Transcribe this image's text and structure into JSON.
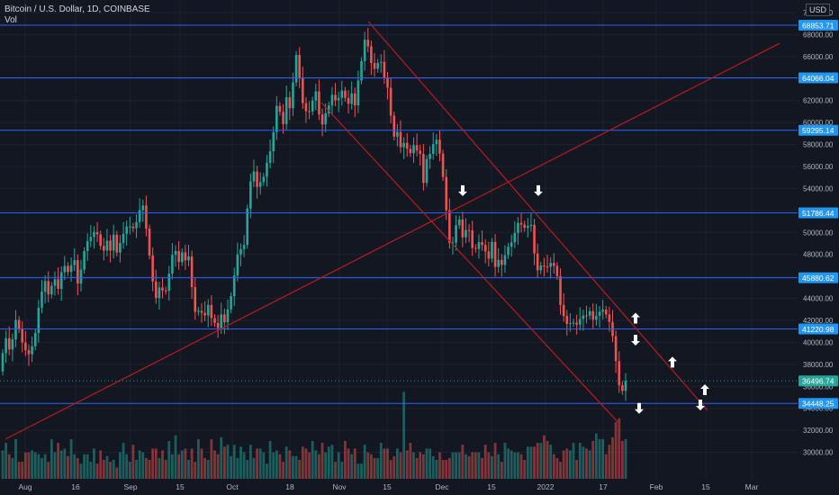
{
  "header": {
    "symbol": "Bitcoin / U.S. Dollar, 1D, COINBASE",
    "indicator": "Vol",
    "currency": "USD"
  },
  "colors": {
    "background": "#131722",
    "grid": "#1e222d",
    "up": "#26a69a",
    "down": "#ef5350",
    "level_line": "#2962ff",
    "level_label": "#2196f3",
    "trendline": "#b71c1c",
    "last_price": "#26a69a",
    "axis_text": "#b2b5be"
  },
  "chart_data": {
    "type": "candlestick",
    "title": "Bitcoin / U.S. Dollar, 1D, COINBASE",
    "ylim": [
      28500,
      70800
    ],
    "x_ticks": [
      "Aug",
      "16",
      "Sep",
      "15",
      "Oct",
      "18",
      "Nov",
      "15",
      "Dec",
      "15",
      "2022",
      "17",
      "Feb",
      "15",
      "Mar"
    ],
    "y_ticks": [
      30000,
      32000,
      34000,
      36000,
      38000,
      40000,
      42000,
      44000,
      46000,
      48000,
      50000,
      52000,
      54000,
      56000,
      58000,
      60000,
      62000,
      64000,
      66000,
      68000,
      70000
    ],
    "horizontal_levels": [
      68853.71,
      64066.04,
      59295.14,
      51786.44,
      45880.62,
      41220.98,
      34448.25
    ],
    "last_price": 36496.74,
    "path": [
      [
        0,
        36800
      ],
      [
        8,
        40500
      ],
      [
        14,
        38800
      ],
      [
        18,
        42300
      ],
      [
        22,
        41500
      ],
      [
        28,
        39500
      ],
      [
        34,
        38900
      ],
      [
        40,
        40200
      ],
      [
        46,
        44000
      ],
      [
        52,
        45600
      ],
      [
        56,
        44200
      ],
      [
        62,
        46000
      ],
      [
        66,
        44700
      ],
      [
        72,
        47200
      ],
      [
        78,
        46300
      ],
      [
        84,
        47800
      ],
      [
        88,
        45300
      ],
      [
        92,
        46700
      ],
      [
        96,
        48600
      ],
      [
        100,
        49400
      ],
      [
        104,
        49700
      ],
      [
        108,
        50300
      ],
      [
        112,
        49300
      ],
      [
        116,
        47900
      ],
      [
        120,
        49500
      ],
      [
        124,
        48200
      ],
      [
        128,
        49800
      ],
      [
        132,
        48000
      ],
      [
        136,
        49300
      ],
      [
        140,
        50100
      ],
      [
        144,
        50800
      ],
      [
        148,
        50300
      ],
      [
        152,
        50500
      ],
      [
        156,
        51800
      ],
      [
        160,
        52800
      ],
      [
        164,
        50500
      ],
      [
        168,
        47800
      ],
      [
        172,
        45200
      ],
      [
        176,
        43700
      ],
      [
        180,
        45600
      ],
      [
        184,
        44100
      ],
      [
        188,
        45300
      ],
      [
        192,
        47700
      ],
      [
        196,
        48600
      ],
      [
        200,
        47200
      ],
      [
        204,
        48200
      ],
      [
        208,
        47400
      ],
      [
        212,
        47900
      ],
      [
        216,
        44000
      ],
      [
        220,
        42100
      ],
      [
        224,
        43500
      ],
      [
        228,
        41700
      ],
      [
        232,
        43800
      ],
      [
        236,
        42300
      ],
      [
        240,
        41800
      ],
      [
        244,
        41300
      ],
      [
        248,
        42700
      ],
      [
        252,
        41600
      ],
      [
        256,
        43600
      ],
      [
        260,
        44600
      ],
      [
        264,
        47500
      ],
      [
        268,
        48700
      ],
      [
        272,
        48000
      ],
      [
        276,
        51800
      ],
      [
        280,
        54600
      ],
      [
        284,
        55600
      ],
      [
        288,
        53900
      ],
      [
        292,
        54800
      ],
      [
        296,
        55200
      ],
      [
        300,
        57200
      ],
      [
        304,
        57600
      ],
      [
        308,
        61600
      ],
      [
        312,
        61300
      ],
      [
        316,
        59600
      ],
      [
        320,
        62300
      ],
      [
        324,
        61200
      ],
      [
        328,
        64200
      ],
      [
        332,
        66900
      ],
      [
        336,
        62300
      ],
      [
        340,
        61300
      ],
      [
        344,
        60700
      ],
      [
        348,
        61600
      ],
      [
        352,
        63200
      ],
      [
        356,
        60800
      ],
      [
        360,
        59800
      ],
      [
        364,
        61000
      ],
      [
        368,
        61700
      ],
      [
        372,
        62900
      ],
      [
        376,
        61400
      ],
      [
        380,
        63100
      ],
      [
        384,
        62600
      ],
      [
        388,
        61400
      ],
      [
        392,
        62800
      ],
      [
        396,
        61500
      ],
      [
        400,
        64000
      ],
      [
        404,
        65900
      ],
      [
        408,
        68100
      ],
      [
        412,
        66300
      ],
      [
        416,
        64700
      ],
      [
        420,
        65100
      ],
      [
        424,
        66000
      ],
      [
        428,
        64200
      ],
      [
        432,
        63400
      ],
      [
        436,
        60600
      ],
      [
        440,
        58500
      ],
      [
        444,
        59300
      ],
      [
        448,
        57100
      ],
      [
        452,
        58800
      ],
      [
        456,
        56500
      ],
      [
        460,
        58200
      ],
      [
        464,
        57400
      ],
      [
        468,
        57600
      ],
      [
        472,
        54400
      ],
      [
        476,
        56800
      ],
      [
        480,
        57200
      ],
      [
        484,
        58300
      ],
      [
        488,
        58500
      ],
      [
        492,
        56200
      ],
      [
        496,
        53800
      ],
      [
        500,
        49200
      ],
      [
        504,
        48700
      ],
      [
        508,
        50600
      ],
      [
        512,
        51200
      ],
      [
        516,
        49400
      ],
      [
        520,
        50400
      ],
      [
        524,
        50100
      ],
      [
        528,
        47700
      ],
      [
        532,
        49200
      ],
      [
        536,
        49000
      ],
      [
        540,
        48600
      ],
      [
        544,
        47300
      ],
      [
        548,
        49300
      ],
      [
        552,
        46800
      ],
      [
        556,
        47600
      ],
      [
        560,
        46900
      ],
      [
        564,
        48400
      ],
      [
        568,
        48900
      ],
      [
        572,
        49300
      ],
      [
        576,
        50900
      ],
      [
        580,
        50800
      ],
      [
        584,
        50400
      ],
      [
        588,
        50600
      ],
      [
        592,
        50700
      ],
      [
        596,
        47600
      ],
      [
        600,
        46200
      ],
      [
        604,
        47400
      ],
      [
        608,
        46500
      ],
      [
        612,
        47300
      ],
      [
        616,
        47100
      ],
      [
        620,
        46600
      ],
      [
        624,
        43500
      ],
      [
        628,
        42400
      ],
      [
        632,
        41600
      ],
      [
        636,
        41800
      ],
      [
        640,
        41800
      ],
      [
        644,
        41500
      ],
      [
        648,
        42700
      ],
      [
        652,
        42100
      ],
      [
        656,
        43100
      ],
      [
        660,
        42000
      ],
      [
        664,
        42400
      ],
      [
        668,
        42800
      ],
      [
        672,
        43000
      ],
      [
        676,
        42400
      ],
      [
        680,
        41600
      ],
      [
        684,
        39800
      ],
      [
        688,
        36700
      ],
      [
        692,
        35200
      ],
      [
        696,
        36496
      ]
    ],
    "volume": [
      15,
      19,
      13,
      11,
      21,
      9,
      9,
      14,
      14,
      15,
      14,
      13,
      11,
      13,
      9,
      21,
      14,
      19,
      15,
      16,
      12,
      21,
      13,
      11,
      8,
      13,
      13,
      9,
      16,
      8,
      15,
      10,
      12,
      9,
      10,
      6,
      14,
      19,
      13,
      9,
      18,
      10,
      15,
      14,
      11,
      10,
      16,
      16,
      11,
      15,
      10,
      20,
      13,
      23,
      13,
      15,
      16,
      10,
      16,
      9,
      21,
      16,
      11,
      10,
      21,
      15,
      13,
      22,
      17,
      18,
      12,
      18,
      11,
      17,
      14,
      10,
      18,
      11,
      16,
      16,
      14,
      8,
      20,
      14,
      15,
      13,
      9,
      17,
      15,
      12,
      12,
      10,
      17,
      16,
      14,
      20,
      15,
      13,
      19,
      14,
      17,
      18,
      9,
      14,
      9,
      20,
      16,
      13,
      16,
      8,
      8,
      18,
      14,
      13,
      11,
      11,
      19,
      16,
      16,
      10,
      12,
      16,
      14,
      46,
      15,
      19,
      14,
      11,
      14,
      13,
      16,
      16,
      12,
      10,
      14,
      10,
      10,
      11,
      14,
      14,
      14,
      18,
      13,
      12,
      14,
      14,
      14,
      11,
      18,
      14,
      12,
      19,
      13,
      9,
      19,
      16,
      15,
      14,
      14,
      13,
      10,
      17,
      17,
      17,
      19,
      19,
      23,
      20,
      18,
      13,
      11,
      9,
      15,
      16,
      15,
      19,
      10,
      19,
      17,
      16,
      15,
      20,
      24,
      21,
      21,
      13,
      18,
      22,
      30,
      32,
      20,
      21
    ],
    "trendlines": [
      {
        "from": [
          6,
          31200
        ],
        "to": [
          866,
          67200
        ]
      },
      {
        "from": [
          409,
          69200
        ],
        "to": [
          786,
          33800
        ]
      },
      {
        "from": [
          357,
          61800
        ],
        "to": [
          688,
          32600
        ]
      }
    ],
    "arrows": [
      {
        "dir": "down",
        "pos": [
          514,
          53800
        ]
      },
      {
        "dir": "down",
        "pos": [
          598,
          53800
        ]
      },
      {
        "dir": "up",
        "pos": [
          706,
          42200
        ]
      },
      {
        "dir": "down",
        "pos": [
          706,
          40200
        ]
      },
      {
        "dir": "up",
        "pos": [
          747,
          38200
        ]
      },
      {
        "dir": "up",
        "pos": [
          783,
          35700
        ]
      },
      {
        "dir": "down",
        "pos": [
          710,
          34000
        ]
      },
      {
        "dir": "down",
        "pos": [
          778,
          34300
        ]
      }
    ]
  }
}
